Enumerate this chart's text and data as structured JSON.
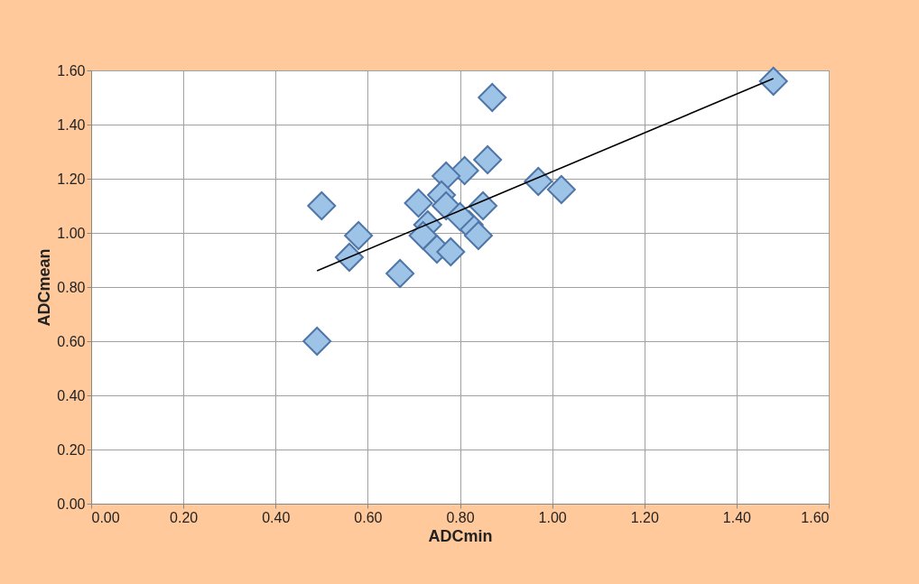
{
  "chart_data": {
    "type": "scatter",
    "xlabel": "ADCmin",
    "ylabel": "ADCmean",
    "xlim": [
      0,
      1.6
    ],
    "ylim": [
      0,
      1.6
    ],
    "xticks": [
      {
        "value": 0,
        "label": "0.00"
      },
      {
        "value": 0.2,
        "label": "0.20"
      },
      {
        "value": 0.4,
        "label": "0.40"
      },
      {
        "value": 0.6,
        "label": "0.60"
      },
      {
        "value": 0.8,
        "label": "0.80"
      },
      {
        "value": 1,
        "label": "1.00"
      },
      {
        "value": 1.2,
        "label": "1.20"
      },
      {
        "value": 1.4,
        "label": "1.40"
      },
      {
        "value": 1.6,
        "label": "1.60"
      }
    ],
    "yticks": [
      {
        "value": 0,
        "label": "0.00"
      },
      {
        "value": 0.2,
        "label": "0.20"
      },
      {
        "value": 0.4,
        "label": "0.40"
      },
      {
        "value": 0.6,
        "label": "0.60"
      },
      {
        "value": 0.8,
        "label": "0.80"
      },
      {
        "value": 1,
        "label": "1.00"
      },
      {
        "value": 1.2,
        "label": "1.20"
      },
      {
        "value": 1.4,
        "label": "1.40"
      },
      {
        "value": 1.6,
        "label": "1.60"
      }
    ],
    "grid": true,
    "series": [
      {
        "marker": "diamond",
        "color": "#9dc3e6",
        "x": [
          0.49,
          0.5,
          0.58,
          0.56,
          0.67,
          0.87,
          0.86,
          0.81,
          0.77,
          0.76,
          0.71,
          0.77,
          0.85,
          0.73,
          0.72,
          0.75,
          0.78,
          0.82,
          0.84,
          0.8,
          0.97,
          1.02,
          1.48
        ],
        "values": [
          0.6,
          1.1,
          0.99,
          0.91,
          0.85,
          1.5,
          1.27,
          1.23,
          1.21,
          1.14,
          1.11,
          1.1,
          1.1,
          1.03,
          0.99,
          0.94,
          0.93,
          1.03,
          0.99,
          1.06,
          1.19,
          1.16,
          1.56
        ]
      },
      {
        "type": "line",
        "marker": "none",
        "color": "#000000",
        "x": [
          0.49,
          1.48
        ],
        "values": [
          0.86,
          1.57
        ]
      }
    ]
  }
}
